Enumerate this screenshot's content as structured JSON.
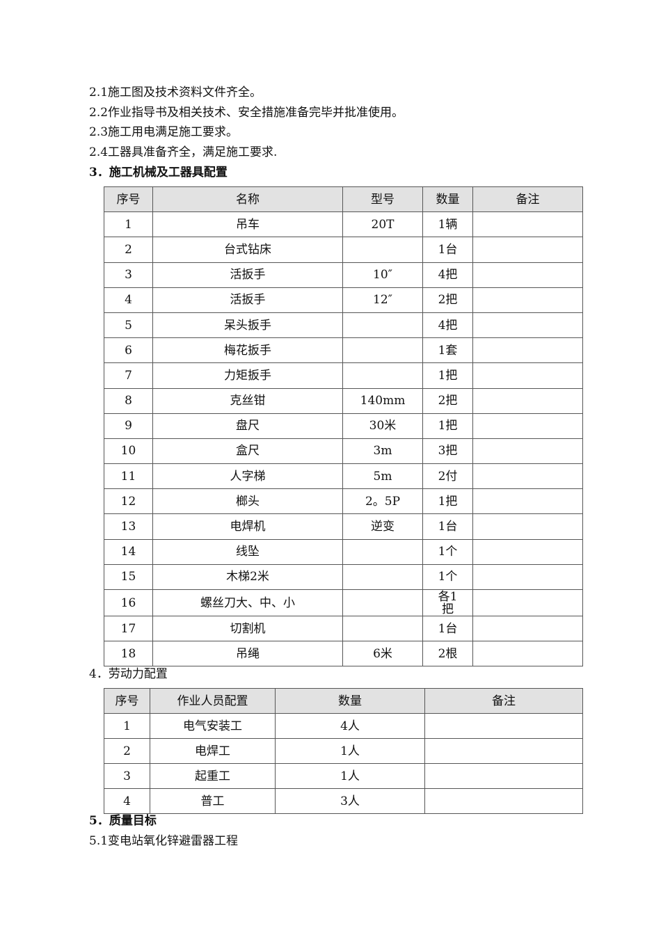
{
  "lines": {
    "l21": "2.1施工图及技术资料文件齐全。",
    "l22": "2.2作业指导书及相关技术、安全措施准备完毕并批准使用。",
    "l23": "2.3施工用电满足施工要求。",
    "l24": "2.4工器具准备齐全，满足施工要求.",
    "h3": "3．施工机械及工器具配置",
    "h4": "4．劳动力配置",
    "h5": "5．质量目标",
    "l51": "5.1变电站氧化锌避雷器工程"
  },
  "tools_table": {
    "headers": [
      "序号",
      "名称",
      "型号",
      "数量",
      "备注"
    ],
    "rows": [
      [
        "1",
        "吊车",
        "20T",
        "1辆",
        ""
      ],
      [
        "2",
        "台式钻床",
        "",
        "1台",
        ""
      ],
      [
        "3",
        "活扳手",
        "10″",
        "4把",
        ""
      ],
      [
        "4",
        "活扳手",
        "12″",
        "2把",
        ""
      ],
      [
        "5",
        "呆头扳手",
        "",
        "4把",
        ""
      ],
      [
        "6",
        "梅花扳手",
        "",
        "1套",
        ""
      ],
      [
        "7",
        "力矩扳手",
        "",
        "1把",
        ""
      ],
      [
        "8",
        "克丝钳",
        "140mm",
        "2把",
        ""
      ],
      [
        "9",
        "盘尺",
        "30米",
        "1把",
        ""
      ],
      [
        "10",
        "盒尺",
        "3m",
        "3把",
        ""
      ],
      [
        "11",
        "人字梯",
        "5m",
        "2付",
        ""
      ],
      [
        "12",
        "榔头",
        "2。5P",
        "1把",
        ""
      ],
      [
        "13",
        "电焊机",
        "逆变",
        "1台",
        ""
      ],
      [
        "14",
        "线坠",
        "",
        "1个",
        ""
      ],
      [
        "15",
        "木梯2米",
        "",
        "1个",
        ""
      ],
      [
        "16",
        "螺丝刀大、中、小",
        "",
        "各1把",
        ""
      ],
      [
        "17",
        "切割机",
        "",
        "1台",
        ""
      ],
      [
        "18",
        "吊绳",
        "6米",
        "2根",
        ""
      ]
    ]
  },
  "labor_table": {
    "headers": [
      "序号",
      "作业人员配置",
      "数量",
      "备注"
    ],
    "rows": [
      [
        "1",
        "电气安装工",
        "4人",
        ""
      ],
      [
        "2",
        "电焊工",
        "1人",
        ""
      ],
      [
        "3",
        "起重工",
        "1人",
        ""
      ],
      [
        "4",
        "普工",
        "3人",
        ""
      ]
    ]
  }
}
